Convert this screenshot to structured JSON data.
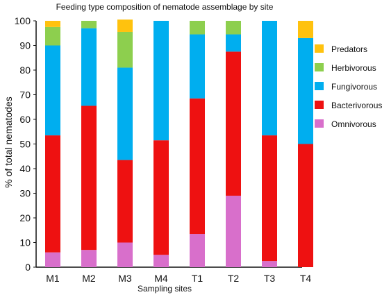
{
  "chart_data": {
    "type": "bar",
    "stacked": true,
    "title": "Feeding type composition of nematode assemblage  by site",
    "xlabel": "Sampling sites",
    "ylabel": "% of total nematodes",
    "ylim": [
      0,
      100
    ],
    "yticks": [
      0,
      10,
      20,
      30,
      40,
      50,
      60,
      70,
      80,
      90,
      100
    ],
    "grid": false,
    "legend_position": "right",
    "categories": [
      "M1",
      "M2",
      "M3",
      "M4",
      "T1",
      "T2",
      "T3",
      "T4"
    ],
    "series": [
      {
        "name": "Omnivorous",
        "color": "#d86fcb",
        "values": [
          6,
          7,
          10,
          5,
          13.5,
          29,
          2.5,
          0
        ]
      },
      {
        "name": "Bacterivorous",
        "color": "#ee1111",
        "values": [
          47.5,
          58.5,
          33.5,
          46.5,
          55,
          58.5,
          51,
          50
        ]
      },
      {
        "name": "Fungivorous",
        "color": "#00aeef",
        "values": [
          36.5,
          31.5,
          37.5,
          48.5,
          26,
          7,
          46.5,
          43
        ]
      },
      {
        "name": "Herbivorous",
        "color": "#8dcf4e",
        "values": [
          7.5,
          3,
          14.5,
          0,
          5.5,
          5.5,
          0,
          0
        ]
      },
      {
        "name": "Predators",
        "color": "#ffc20e",
        "values": [
          2.5,
          0,
          5,
          0,
          0,
          0,
          0,
          7
        ]
      }
    ],
    "legend_order": [
      "Predators",
      "Herbivorous",
      "Fungivorous",
      "Bacterivorous",
      "Omnivorous"
    ]
  }
}
